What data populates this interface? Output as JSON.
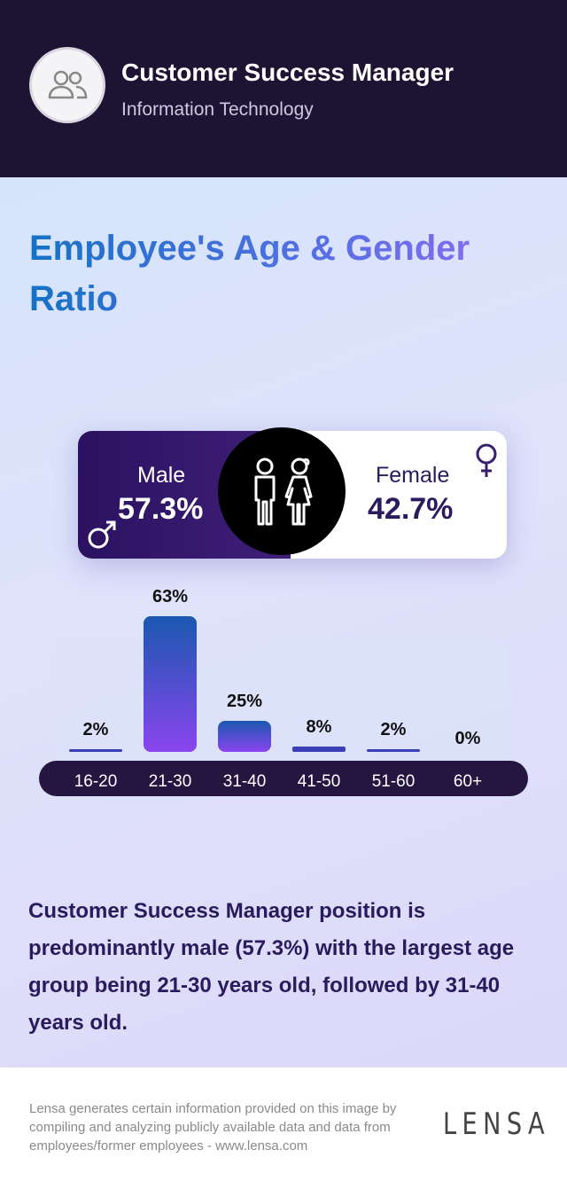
{
  "header": {
    "title": "Customer Success Manager",
    "subtitle": "Information Technology",
    "avatar_icon": "users-icon"
  },
  "heading": "Employee's Age & Gender Ratio",
  "gender": {
    "male_label": "Male",
    "male_pct": "57.3%",
    "female_label": "Female",
    "female_pct": "42.7%"
  },
  "chart_data": {
    "type": "bar",
    "categories": [
      "16-20",
      "21-30",
      "31-40",
      "41-50",
      "51-60",
      "60+"
    ],
    "values": [
      2,
      63,
      25,
      8,
      2,
      0
    ],
    "data_labels": [
      "2%",
      "63%",
      "25%",
      "8%",
      "2%",
      "0%"
    ],
    "grid": false
  },
  "summary": "Customer Success Manager position is predominantly male (57.3%) with the largest age group being 21-30 years old, followed by 31-40 years old.",
  "footer": {
    "disclaimer": "Lensa generates certain information provided on this image by compiling and analyzing publicly available data and data from employees/former employees - www.lensa.com",
    "logo": "LENSA"
  },
  "colors": {
    "header_bg": "#1d1333",
    "male": "#2b1260",
    "female_text": "#2a1a5e",
    "bar_top": "#1a58b0",
    "bar_bottom": "#8a45ee"
  }
}
